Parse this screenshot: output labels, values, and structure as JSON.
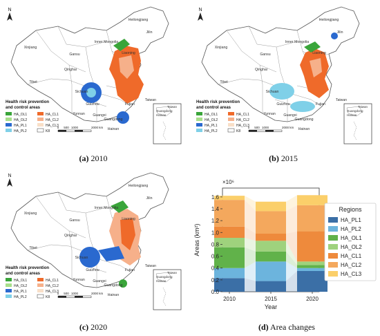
{
  "captions": [
    {
      "letter": "(a)",
      "text": " 2010"
    },
    {
      "letter": "(b)",
      "text": " 2015"
    },
    {
      "letter": "(c)",
      "text": " 2020"
    },
    {
      "letter": "(d)",
      "text": " Area changes"
    }
  ],
  "map": {
    "north": "N",
    "legend_title_1": "Health risk prevention",
    "legend_title_2": "and control areas",
    "legend_items": [
      "HA_OL1",
      "HA_OL2",
      "HA_PL1",
      "HA_PL2",
      "HA_CL1",
      "HA_CL2",
      "HA_CL3",
      "K8"
    ],
    "legend_colors": [
      "#3aa53a",
      "#a7df8a",
      "#2a69cf",
      "#7fd0e8",
      "#ef6a2a",
      "#f6b08a",
      "#f8dfc8",
      "#ffffff"
    ],
    "scale_labels": [
      "0",
      "500",
      "1000",
      "2000 km"
    ],
    "place_labels": [
      "Heilongjiang",
      "Xinjiang",
      "Inner Mongolia",
      "Liaoning",
      "Jilin",
      "Gansu",
      "Qinghai",
      "Tibet",
      "Sichuan",
      "Yunnan",
      "Guizhou",
      "Guangxi",
      "Hainan",
      "Fujian",
      "Taiwan",
      "Guangdong"
    ],
    "inset_labels": [
      "Taiwan",
      "Guangdong",
      "Hainan"
    ]
  },
  "chart_data": {
    "type": "bar",
    "stacked": true,
    "categories": [
      "2010",
      "2015",
      "2020"
    ],
    "series": [
      {
        "name": "HA_PL1",
        "color": "#3b6fa6",
        "values": [
          0.23,
          0.18,
          0.35
        ]
      },
      {
        "name": "HA_PL2",
        "color": "#6cb4dd",
        "values": [
          0.17,
          0.33,
          0.05
        ]
      },
      {
        "name": "HA_OL1",
        "color": "#61b24a",
        "values": [
          0.35,
          0.17,
          0.05
        ]
      },
      {
        "name": "HA_OL2",
        "color": "#9fd27d",
        "values": [
          0.16,
          0.18,
          0.06
        ]
      },
      {
        "name": "HA_CL1",
        "color": "#ee8a3c",
        "values": [
          0.19,
          0.12,
          0.51
        ]
      },
      {
        "name": "HA_CL2",
        "color": "#f4a85d",
        "values": [
          0.45,
          0.38,
          0.44
        ]
      },
      {
        "name": "HA_CL3",
        "color": "#fbcf6a",
        "values": [
          0.07,
          0.16,
          0.17
        ]
      }
    ],
    "exponent_label": "×10⁶",
    "xlabel": "Year",
    "ylabel": "Areas (km²)",
    "ylim": [
      0,
      1.75
    ],
    "yticks": [
      "0.0",
      "0.2",
      "0.4",
      "0.6",
      "0.8",
      "1.0",
      "1.2",
      "1.4",
      "1.6"
    ],
    "legend_title": "Regions",
    "legend_position": "right"
  }
}
